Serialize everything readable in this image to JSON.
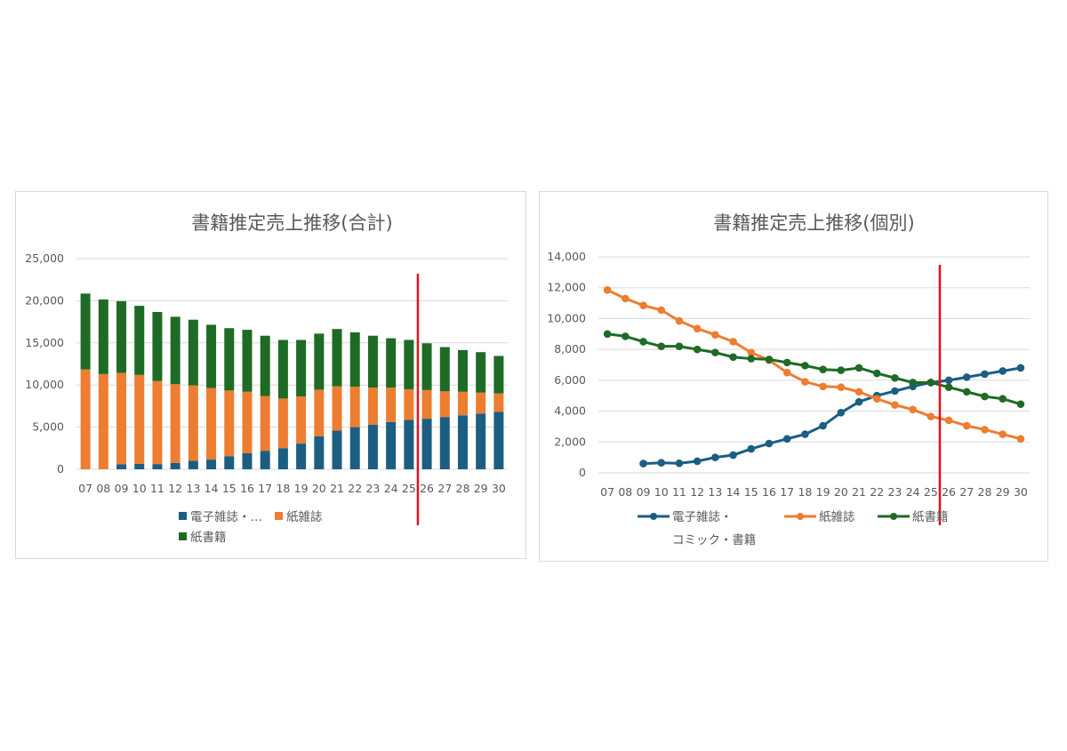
{
  "colors": {
    "digital": "#1b5e82",
    "magazine": "#ed7d31",
    "book": "#1e6b25",
    "marker_line": "#e8101a"
  },
  "chart_data": [
    {
      "type": "bar",
      "stacked": true,
      "title": "書籍推定売上推移(合計)",
      "categories": [
        "07",
        "08",
        "09",
        "10",
        "11",
        "12",
        "13",
        "14",
        "15",
        "16",
        "17",
        "18",
        "19",
        "20",
        "21",
        "22",
        "23",
        "24",
        "25",
        "26",
        "27",
        "28",
        "29",
        "30"
      ],
      "ylim": [
        0,
        25000
      ],
      "yticks": [
        "0",
        "5,000",
        "10,000",
        "15,000",
        "20,000",
        "25,000"
      ],
      "grid": true,
      "legend_position": "bottom",
      "vertical_marker_between": [
        "25",
        "26"
      ],
      "series": [
        {
          "name": "電子雑誌・…",
          "values": [
            0,
            0,
            600,
            650,
            620,
            750,
            1000,
            1150,
            1550,
            1900,
            2200,
            2500,
            3050,
            3900,
            4600,
            5000,
            5300,
            5600,
            5850,
            6000,
            6200,
            6400,
            6600,
            6800
          ]
        },
        {
          "name": "紙雑誌",
          "values": [
            11850,
            11300,
            10850,
            10550,
            9850,
            9350,
            8950,
            8500,
            7800,
            7300,
            6500,
            5900,
            5600,
            5550,
            5250,
            4800,
            4400,
            4100,
            3650,
            3400,
            3050,
            2800,
            2500,
            2200
          ]
        },
        {
          "name": "紙書籍",
          "values": [
            9000,
            8850,
            8500,
            8200,
            8200,
            8000,
            7800,
            7500,
            7400,
            7350,
            7150,
            6950,
            6700,
            6650,
            6800,
            6450,
            6150,
            5850,
            5850,
            5550,
            5250,
            4950,
            4800,
            4450
          ]
        }
      ]
    },
    {
      "type": "line",
      "title": "書籍推定売上推移(個別)",
      "categories": [
        "07",
        "08",
        "09",
        "10",
        "11",
        "12",
        "13",
        "14",
        "15",
        "16",
        "17",
        "18",
        "19",
        "20",
        "21",
        "22",
        "23",
        "24",
        "25",
        "26",
        "27",
        "28",
        "29",
        "30"
      ],
      "ylim": [
        0,
        14000
      ],
      "yticks": [
        "0",
        "2,000",
        "4,000",
        "6,000",
        "8,000",
        "10,000",
        "12,000",
        "14,000"
      ],
      "grid": true,
      "legend_position": "bottom",
      "vertical_marker_between": [
        "25",
        "26"
      ],
      "series": [
        {
          "name": "電子雑誌・コミック・書籍",
          "legend_lines": [
            "電子雑誌・",
            "コミック・書籍"
          ],
          "values": [
            null,
            null,
            600,
            650,
            620,
            750,
            1000,
            1150,
            1550,
            1900,
            2200,
            2500,
            3050,
            3900,
            4600,
            5000,
            5300,
            5600,
            5850,
            6000,
            6200,
            6400,
            6600,
            6800
          ]
        },
        {
          "name": "紙雑誌",
          "values": [
            11850,
            11300,
            10850,
            10550,
            9850,
            9350,
            8950,
            8500,
            7800,
            7300,
            6500,
            5900,
            5600,
            5550,
            5250,
            4800,
            4400,
            4100,
            3650,
            3400,
            3050,
            2800,
            2500,
            2200
          ]
        },
        {
          "name": "紙書籍",
          "values": [
            9000,
            8850,
            8500,
            8200,
            8200,
            8000,
            7800,
            7500,
            7400,
            7350,
            7150,
            6950,
            6700,
            6650,
            6800,
            6450,
            6150,
            5850,
            5850,
            5550,
            5250,
            4950,
            4800,
            4450
          ]
        }
      ]
    }
  ]
}
